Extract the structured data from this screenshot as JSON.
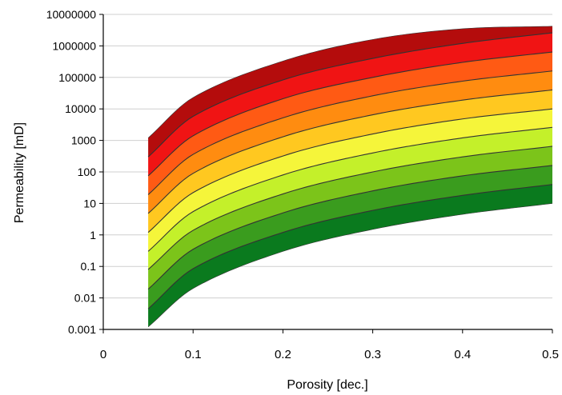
{
  "chart_data": {
    "type": "area",
    "xlabel": "Porosity [dec.]",
    "ylabel": "Permeability [mD]",
    "xlim": [
      0,
      0.5
    ],
    "ylim": [
      0.001,
      10000000
    ],
    "y_scale": "log",
    "x_ticks": [
      "0",
      "0.1",
      "0.2",
      "0.3",
      "0.4",
      "0.5"
    ],
    "y_ticks": [
      "10000000",
      "1000000",
      "100000",
      "10000",
      "1000",
      "100",
      "10",
      "1",
      "0.1",
      "0.01",
      "0.001"
    ],
    "grid": "horizontal",
    "x_range": [
      0.05,
      0.5
    ],
    "boundary_curves": [
      {
        "x": [
          0.05,
          0.1,
          0.2,
          0.3,
          0.4,
          0.5
        ],
        "y": [
          0.0012,
          0.02,
          0.3,
          1.5,
          4.5,
          10
        ]
      },
      {
        "x": [
          0.05,
          0.1,
          0.2,
          0.3,
          0.4,
          0.5
        ],
        "y": [
          0.0045,
          0.085,
          1.2,
          6,
          18,
          40
        ]
      },
      {
        "x": [
          0.05,
          0.1,
          0.2,
          0.3,
          0.4,
          0.5
        ],
        "y": [
          0.019,
          0.35,
          5,
          25,
          75,
          160
        ]
      },
      {
        "x": [
          0.05,
          0.1,
          0.2,
          0.3,
          0.4,
          0.5
        ],
        "y": [
          0.08,
          1.4,
          20,
          100,
          300,
          650
        ]
      },
      {
        "x": [
          0.05,
          0.1,
          0.2,
          0.3,
          0.4,
          0.5
        ],
        "y": [
          0.3,
          5.5,
          80,
          400,
          1200,
          2600
        ]
      },
      {
        "x": [
          0.05,
          0.1,
          0.2,
          0.3,
          0.4,
          0.5
        ],
        "y": [
          1.2,
          22,
          320,
          1600,
          4800,
          10000
        ]
      },
      {
        "x": [
          0.05,
          0.1,
          0.2,
          0.3,
          0.4,
          0.5
        ],
        "y": [
          4.8,
          90,
          1300,
          6500,
          19000,
          40000
        ]
      },
      {
        "x": [
          0.05,
          0.1,
          0.2,
          0.3,
          0.4,
          0.5
        ],
        "y": [
          19,
          360,
          5200,
          26000,
          76000,
          160000
        ]
      },
      {
        "x": [
          0.05,
          0.1,
          0.2,
          0.3,
          0.4,
          0.5
        ],
        "y": [
          75,
          1400,
          21000,
          100000,
          300000,
          640000
        ]
      },
      {
        "x": [
          0.05,
          0.1,
          0.2,
          0.3,
          0.4,
          0.5
        ],
        "y": [
          300,
          5800,
          83000,
          400000,
          1200000,
          2600000
        ]
      },
      {
        "x": [
          0.05,
          0.1,
          0.2,
          0.3,
          0.4,
          0.5
        ],
        "y": [
          1200,
          23000,
          330000,
          1600000,
          3500000,
          4200000
        ]
      }
    ],
    "band_colors": [
      "#0a7a1e",
      "#3a9c1e",
      "#7cc41a",
      "#c4f02a",
      "#f5f53a",
      "#ffc820",
      "#ff8c10",
      "#ff5a14",
      "#f01414",
      "#b40c0c",
      "#7c0a0a"
    ],
    "boundary_line_color": "#333333"
  }
}
